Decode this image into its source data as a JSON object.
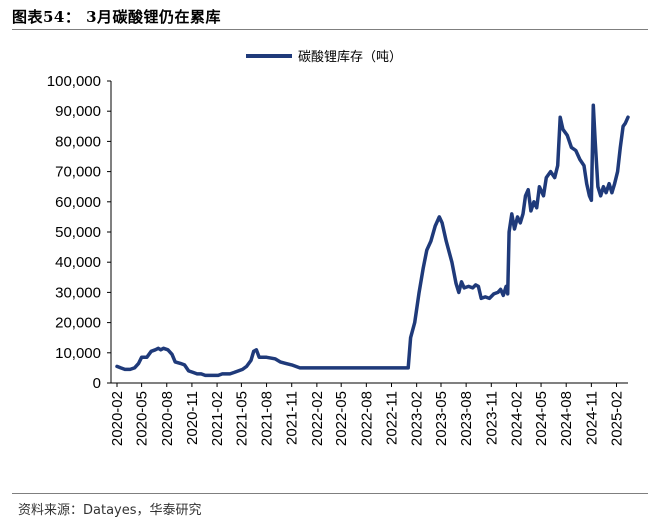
{
  "figure": {
    "title": "图表54： 3月碳酸锂仍在累库",
    "source": "资料来源：Datayes，华泰研究"
  },
  "colors": {
    "series": "#1f3a7a",
    "axis": "#000000",
    "rule": "#7f7f7f"
  },
  "chart_data": {
    "type": "line",
    "title": "",
    "xlabel": "",
    "ylabel": "",
    "ylim": [
      0,
      100000
    ],
    "y_ticks": [
      "0",
      "10,000",
      "20,000",
      "30,000",
      "40,000",
      "50,000",
      "60,000",
      "70,000",
      "80,000",
      "90,000",
      "100,000"
    ],
    "x_ticks": [
      "2020-02",
      "2020-05",
      "2020-08",
      "2020-11",
      "2021-02",
      "2021-05",
      "2021-08",
      "2021-11",
      "2022-02",
      "2022-05",
      "2022-08",
      "2022-11",
      "2023-02",
      "2023-05",
      "2023-08",
      "2023-11",
      "2024-02",
      "2024-05",
      "2024-08",
      "2024-11",
      "2025-02"
    ],
    "grid": false,
    "legend": "top-center",
    "series": [
      {
        "name": "碳酸锂库存（吨）",
        "points": [
          [
            "2020-02-01",
            5500
          ],
          [
            "2020-02-15",
            5000
          ],
          [
            "2020-03-01",
            4500
          ],
          [
            "2020-03-20",
            4500
          ],
          [
            "2020-04-05",
            5000
          ],
          [
            "2020-04-20",
            6500
          ],
          [
            "2020-05-01",
            8500
          ],
          [
            "2020-05-20",
            8500
          ],
          [
            "2020-06-05",
            10500
          ],
          [
            "2020-06-20",
            11000
          ],
          [
            "2020-07-01",
            11500
          ],
          [
            "2020-07-10",
            11000
          ],
          [
            "2020-07-20",
            11500
          ],
          [
            "2020-08-05",
            11000
          ],
          [
            "2020-08-20",
            9500
          ],
          [
            "2020-09-01",
            7000
          ],
          [
            "2020-09-20",
            6500
          ],
          [
            "2020-10-05",
            6000
          ],
          [
            "2020-10-20",
            4000
          ],
          [
            "2020-11-05",
            3500
          ],
          [
            "2020-11-20",
            3000
          ],
          [
            "2020-12-05",
            3000
          ],
          [
            "2020-12-20",
            2500
          ],
          [
            "2021-01-05",
            2500
          ],
          [
            "2021-01-20",
            2500
          ],
          [
            "2021-02-05",
            2500
          ],
          [
            "2021-02-20",
            3000
          ],
          [
            "2021-03-05",
            3000
          ],
          [
            "2021-03-20",
            3000
          ],
          [
            "2021-04-05",
            3500
          ],
          [
            "2021-04-20",
            4000
          ],
          [
            "2021-05-05",
            4500
          ],
          [
            "2021-05-20",
            5500
          ],
          [
            "2021-06-05",
            7500
          ],
          [
            "2021-06-15",
            10500
          ],
          [
            "2021-06-25",
            11000
          ],
          [
            "2021-07-05",
            8500
          ],
          [
            "2021-08-01",
            8500
          ],
          [
            "2021-09-01",
            8000
          ],
          [
            "2021-09-20",
            7000
          ],
          [
            "2021-10-10",
            6500
          ],
          [
            "2021-11-01",
            6000
          ],
          [
            "2021-12-01",
            5000
          ],
          [
            "2022-01-01",
            5000
          ],
          [
            "2022-03-01",
            5000
          ],
          [
            "2022-06-01",
            5000
          ],
          [
            "2022-09-01",
            5000
          ],
          [
            "2022-12-01",
            5000
          ],
          [
            "2023-01-01",
            5000
          ],
          [
            "2023-01-10",
            15000
          ],
          [
            "2023-01-25",
            20000
          ],
          [
            "2023-02-10",
            30000
          ],
          [
            "2023-02-25",
            38000
          ],
          [
            "2023-03-10",
            44000
          ],
          [
            "2023-03-25",
            47000
          ],
          [
            "2023-04-10",
            52000
          ],
          [
            "2023-04-25",
            55000
          ],
          [
            "2023-05-05",
            53000
          ],
          [
            "2023-05-20",
            47000
          ],
          [
            "2023-06-10",
            40000
          ],
          [
            "2023-06-25",
            33000
          ],
          [
            "2023-07-05",
            30000
          ],
          [
            "2023-07-15",
            33500
          ],
          [
            "2023-07-25",
            31500
          ],
          [
            "2023-08-10",
            32000
          ],
          [
            "2023-08-25",
            31500
          ],
          [
            "2023-09-05",
            32500
          ],
          [
            "2023-09-15",
            32000
          ],
          [
            "2023-09-25",
            28000
          ],
          [
            "2023-10-10",
            28500
          ],
          [
            "2023-10-25",
            28000
          ],
          [
            "2023-11-10",
            29500
          ],
          [
            "2023-11-25",
            30000
          ],
          [
            "2023-12-05",
            31000
          ],
          [
            "2023-12-15",
            29000
          ],
          [
            "2023-12-25",
            32000
          ],
          [
            "2023-12-31",
            29500
          ],
          [
            "2024-01-05",
            50000
          ],
          [
            "2024-01-15",
            56000
          ],
          [
            "2024-01-25",
            51000
          ],
          [
            "2024-02-05",
            55000
          ],
          [
            "2024-02-15",
            53000
          ],
          [
            "2024-02-25",
            56000
          ],
          [
            "2024-03-05",
            62000
          ],
          [
            "2024-03-15",
            64000
          ],
          [
            "2024-03-25",
            57000
          ],
          [
            "2024-04-05",
            60000
          ],
          [
            "2024-04-15",
            58000
          ],
          [
            "2024-04-25",
            65000
          ],
          [
            "2024-05-10",
            62000
          ],
          [
            "2024-05-20",
            68000
          ],
          [
            "2024-06-05",
            70000
          ],
          [
            "2024-06-20",
            68000
          ],
          [
            "2024-07-01",
            72000
          ],
          [
            "2024-07-10",
            88000
          ],
          [
            "2024-07-20",
            84000
          ],
          [
            "2024-08-05",
            82000
          ],
          [
            "2024-08-20",
            78000
          ],
          [
            "2024-09-05",
            77000
          ],
          [
            "2024-09-20",
            74000
          ],
          [
            "2024-10-05",
            72000
          ],
          [
            "2024-10-15",
            66000
          ],
          [
            "2024-10-25",
            62000
          ],
          [
            "2024-11-01",
            60500
          ],
          [
            "2024-11-08",
            92000
          ],
          [
            "2024-11-15",
            80000
          ],
          [
            "2024-11-25",
            65000
          ],
          [
            "2024-12-05",
            62000
          ],
          [
            "2024-12-15",
            65000
          ],
          [
            "2024-12-25",
            63000
          ],
          [
            "2025-01-05",
            66000
          ],
          [
            "2025-01-15",
            63000
          ],
          [
            "2025-01-25",
            66000
          ],
          [
            "2025-02-05",
            70000
          ],
          [
            "2025-02-15",
            78000
          ],
          [
            "2025-02-25",
            85000
          ],
          [
            "2025-03-05",
            86000
          ],
          [
            "2025-03-15",
            88000
          ]
        ]
      }
    ]
  }
}
